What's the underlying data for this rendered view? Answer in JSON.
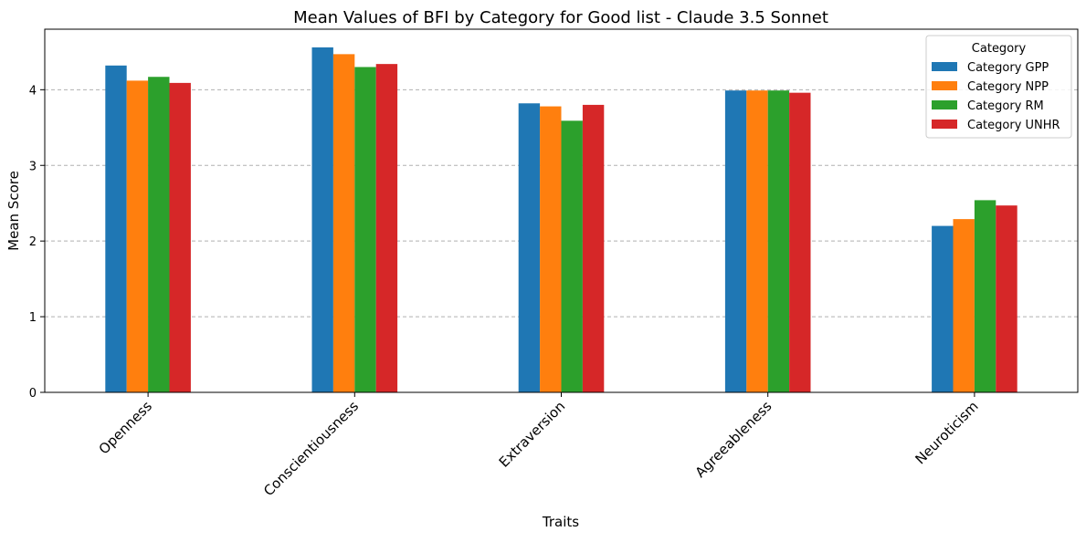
{
  "chart_data": {
    "type": "bar",
    "title": "Mean Values of BFI by Category for Good list - Claude 3.5 Sonnet",
    "xlabel": "Traits",
    "ylabel": "Mean Score",
    "categories": [
      "Openness",
      "Conscientiousness",
      "Extraversion",
      "Agreeableness",
      "Neuroticism"
    ],
    "ylim": [
      0,
      4.8
    ],
    "yticks": [
      0,
      1,
      2,
      3,
      4
    ],
    "grid": "y, dashed",
    "legend": {
      "title": "Category",
      "placement": "top-right"
    },
    "series": [
      {
        "name": "Category GPP",
        "color": "#1f77b4",
        "values": [
          4.32,
          4.56,
          3.82,
          3.99,
          2.2
        ]
      },
      {
        "name": "Category NPP",
        "color": "#ff7f0e",
        "values": [
          4.12,
          4.47,
          3.78,
          3.99,
          2.29
        ]
      },
      {
        "name": "Category RM",
        "color": "#2ca02c",
        "values": [
          4.17,
          4.3,
          3.59,
          3.99,
          2.54
        ]
      },
      {
        "name": "Category UNHR",
        "color": "#d62728",
        "values": [
          4.09,
          4.34,
          3.8,
          3.96,
          2.47
        ]
      }
    ]
  }
}
